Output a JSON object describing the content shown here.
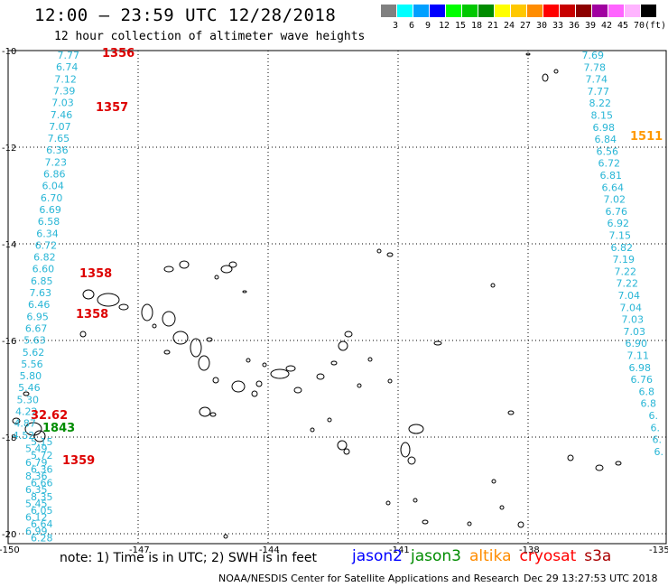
{
  "header": {
    "title": "12:00 – 23:59 UTC 12/28/2018",
    "subtitle": "12 hour collection of altimeter wave heights"
  },
  "color_legend": {
    "unit": "(ft)",
    "bins": [
      {
        "label": "3",
        "color": "#808080"
      },
      {
        "label": "6",
        "color": "#00ffff"
      },
      {
        "label": "9",
        "color": "#00a0ff"
      },
      {
        "label": "12",
        "color": "#0000ff"
      },
      {
        "label": "15",
        "color": "#00ff00"
      },
      {
        "label": "18",
        "color": "#00c800"
      },
      {
        "label": "21",
        "color": "#008c00"
      },
      {
        "label": "24",
        "color": "#ffff00"
      },
      {
        "label": "27",
        "color": "#ffc800"
      },
      {
        "label": "30",
        "color": "#ff8c00"
      },
      {
        "label": "33",
        "color": "#ff0000"
      },
      {
        "label": "36",
        "color": "#c80000"
      },
      {
        "label": "39",
        "color": "#8c0000"
      },
      {
        "label": "42",
        "color": "#a000a0"
      },
      {
        "label": "45",
        "color": "#ff64ff"
      },
      {
        "label": "70",
        "color": "#ffb4ff"
      },
      {
        "label": "",
        "color": "#000000"
      }
    ]
  },
  "axes": {
    "lat_ticks": [
      "-10",
      "-12",
      "-14",
      "-16",
      "-18",
      "-20"
    ],
    "lon_ticks": [
      "-150",
      "-147",
      "-144",
      "-141",
      "-138",
      "-135"
    ]
  },
  "tracks": [
    {
      "id": "west",
      "color": "#29b6d6",
      "values": [
        "7.77",
        "6.74",
        "7.12",
        "7.39",
        "7.03",
        "7.46",
        "7.07",
        "7.65",
        "6.36",
        "7.23",
        "6.86",
        "6.04",
        "6.70",
        "6.69",
        "6.58",
        "6.34",
        "6.72",
        "6.82",
        "6.60",
        "6.85",
        "7.63",
        "6.46",
        "6.95",
        "6.67",
        "5.63",
        "5.62",
        "5.56",
        "5.80",
        "5.46",
        "5.30",
        "4.22",
        "4.87",
        "4.52"
      ]
    },
    {
      "id": "east",
      "color": "#29b6d6",
      "values": [
        "7.69",
        "7.78",
        "7.74",
        "7.77",
        "8.22",
        "8.15",
        "6.98",
        "6.84",
        "6.56",
        "6.72",
        "6.81",
        "6.64",
        "7.02",
        "6.76",
        "6.92",
        "7.15",
        "6.82",
        "7.19",
        "7.22",
        "7.22",
        "7.04",
        "7.04",
        "7.03",
        "7.03",
        "6.90",
        "7.11",
        "6.98",
        "6.76",
        "6.8",
        "6.8",
        "6.",
        "6.",
        "6.",
        "6."
      ]
    },
    {
      "id": "southwest",
      "color": "#29b6d6",
      "values": [
        "5.15",
        "5.49",
        "5.72",
        "6.79",
        "6.36",
        "8.36",
        "6.66",
        "6.35",
        "8.35",
        "5.45",
        "6.05",
        "6.12",
        "6.64",
        "6.99",
        "6.28"
      ]
    }
  ],
  "time_labels": [
    {
      "text": "1356",
      "color": "#dd0000"
    },
    {
      "text": "1357",
      "color": "#dd0000"
    },
    {
      "text": "1358",
      "color": "#dd0000"
    },
    {
      "text": "1358",
      "color": "#dd0000"
    },
    {
      "text": "1359",
      "color": "#dd0000"
    },
    {
      "text": "1511",
      "color": "#ff9900"
    },
    {
      "text": "1843",
      "color": "#008c00"
    },
    {
      "text": "32.62",
      "color": "#dd0000"
    }
  ],
  "footer": {
    "note": "note:  1) Time is in UTC; 2) SWH is in feet",
    "satellites": [
      {
        "name": "jason2",
        "color": "#0000ff"
      },
      {
        "name": "jason3",
        "color": "#008c00"
      },
      {
        "name": "altika",
        "color": "#ff8c00"
      },
      {
        "name": "cryosat",
        "color": "#ff0000"
      },
      {
        "name": "s3a",
        "color": "#aa0000"
      }
    ],
    "credit": "NOAA/NESDIS Center for Satellite Applications and Research",
    "timestamp": "Dec 29 13:27:53 UTC 2018"
  }
}
